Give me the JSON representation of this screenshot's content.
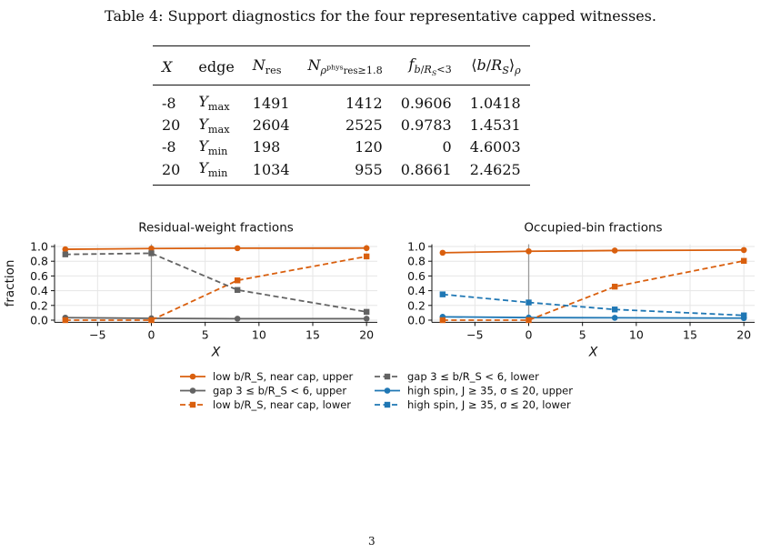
{
  "caption": "Table 4: Support diagnostics for the four representative capped witnesses.",
  "table": {
    "headers": [
      "X",
      "edge",
      "N_res",
      "N_ρ_res^phys ≥ 1.8",
      "f_b/R_S<3",
      "⟨b/R_S⟩_ρ"
    ],
    "rows": [
      {
        "X": "-8",
        "edge": "Y",
        "edge_sub": "max",
        "n_res": "1491",
        "n_phys": "1412",
        "f": "0.9606",
        "mean": "1.0418"
      },
      {
        "X": "20",
        "edge": "Y",
        "edge_sub": "max",
        "n_res": "2604",
        "n_phys": "2525",
        "f": "0.9783",
        "mean": "1.4531"
      },
      {
        "X": "-8",
        "edge": "Y",
        "edge_sub": "min",
        "n_res": "198",
        "n_phys": "120",
        "f": "0",
        "mean": "4.6003"
      },
      {
        "X": "20",
        "edge": "Y",
        "edge_sub": "min",
        "n_res": "1034",
        "n_phys": "955",
        "f": "0.8661",
        "mean": "2.4625"
      }
    ]
  },
  "chart_data": [
    {
      "type": "line",
      "title": "Residual-weight fractions",
      "xlabel": "X",
      "ylabel": "fraction",
      "xlim": [
        -9,
        21
      ],
      "ylim": [
        -0.03,
        1.03
      ],
      "xticks": [
        -5,
        0,
        5,
        10,
        15,
        20
      ],
      "yticks": [
        0.0,
        0.2,
        0.4,
        0.6,
        0.8,
        1.0
      ],
      "x": [
        -8,
        0,
        8,
        20
      ],
      "grid": true,
      "series": [
        {
          "name": "low b/R_S, near cap, upper",
          "color": "#d95f0e",
          "style": "solid",
          "marker": "circle",
          "values": [
            0.962,
            0.972,
            0.977,
            0.978
          ]
        },
        {
          "name": "gap 3 ≤ b/R_S < 6, upper",
          "color": "#636363",
          "style": "solid",
          "marker": "circle",
          "values": [
            0.034,
            0.025,
            0.02,
            0.02
          ]
        },
        {
          "name": "low b/R_S, near cap, lower",
          "color": "#d95f0e",
          "style": "dashed",
          "marker": "square",
          "values": [
            0.0,
            0.0,
            0.54,
            0.865
          ]
        },
        {
          "name": "gap 3 ≤ b/R_S < 6, lower",
          "color": "#636363",
          "style": "dashed",
          "marker": "square",
          "values": [
            0.893,
            0.908,
            0.41,
            0.113
          ]
        }
      ]
    },
    {
      "type": "line",
      "title": "Occupied-bin fractions",
      "xlabel": "X",
      "ylabel": "",
      "xlim": [
        -9,
        21
      ],
      "ylim": [
        -0.03,
        1.03
      ],
      "xticks": [
        -5,
        0,
        5,
        10,
        15,
        20
      ],
      "yticks": [
        0.0,
        0.2,
        0.4,
        0.6,
        0.8,
        1.0
      ],
      "x": [
        -8,
        0,
        8,
        20
      ],
      "grid": true,
      "series": [
        {
          "name": "low b/R_S, near cap, upper",
          "color": "#d95f0e",
          "style": "solid",
          "marker": "circle",
          "values": [
            0.915,
            0.935,
            0.945,
            0.952
          ]
        },
        {
          "name": "high spin, J ≥ 35, σ ≤ 20, upper",
          "color": "#1f77b4",
          "style": "solid",
          "marker": "circle",
          "values": [
            0.045,
            0.035,
            0.032,
            0.028
          ]
        },
        {
          "name": "low b/R_S, near cap, lower",
          "color": "#d95f0e",
          "style": "dashed",
          "marker": "square",
          "values": [
            0.0,
            0.0,
            0.455,
            0.805
          ]
        },
        {
          "name": "high spin, J ≥ 35, σ ≤ 20, lower",
          "color": "#1f77b4",
          "style": "dashed",
          "marker": "square",
          "values": [
            0.35,
            0.24,
            0.145,
            0.065
          ]
        }
      ]
    }
  ],
  "legend": {
    "items": [
      {
        "name": "low b/R_S, near cap, upper",
        "color": "#d95f0e",
        "style": "solid",
        "marker": "circle"
      },
      {
        "name": "gap 3 ≤ b/R_S < 6, lower",
        "color": "#636363",
        "style": "dashed",
        "marker": "square"
      },
      {
        "name": "gap 3 ≤ b/R_S < 6, upper",
        "color": "#636363",
        "style": "solid",
        "marker": "circle"
      },
      {
        "name": "high spin, J ≥ 35, σ ≤ 20, upper",
        "color": "#1f77b4",
        "style": "solid",
        "marker": "circle"
      },
      {
        "name": "low b/R_S, near cap, lower",
        "color": "#d95f0e",
        "style": "dashed",
        "marker": "square"
      },
      {
        "name": "high spin, J ≥ 35, σ ≤ 20, lower",
        "color": "#1f77b4",
        "style": "dashed",
        "marker": "square"
      }
    ]
  },
  "page_number": "3"
}
